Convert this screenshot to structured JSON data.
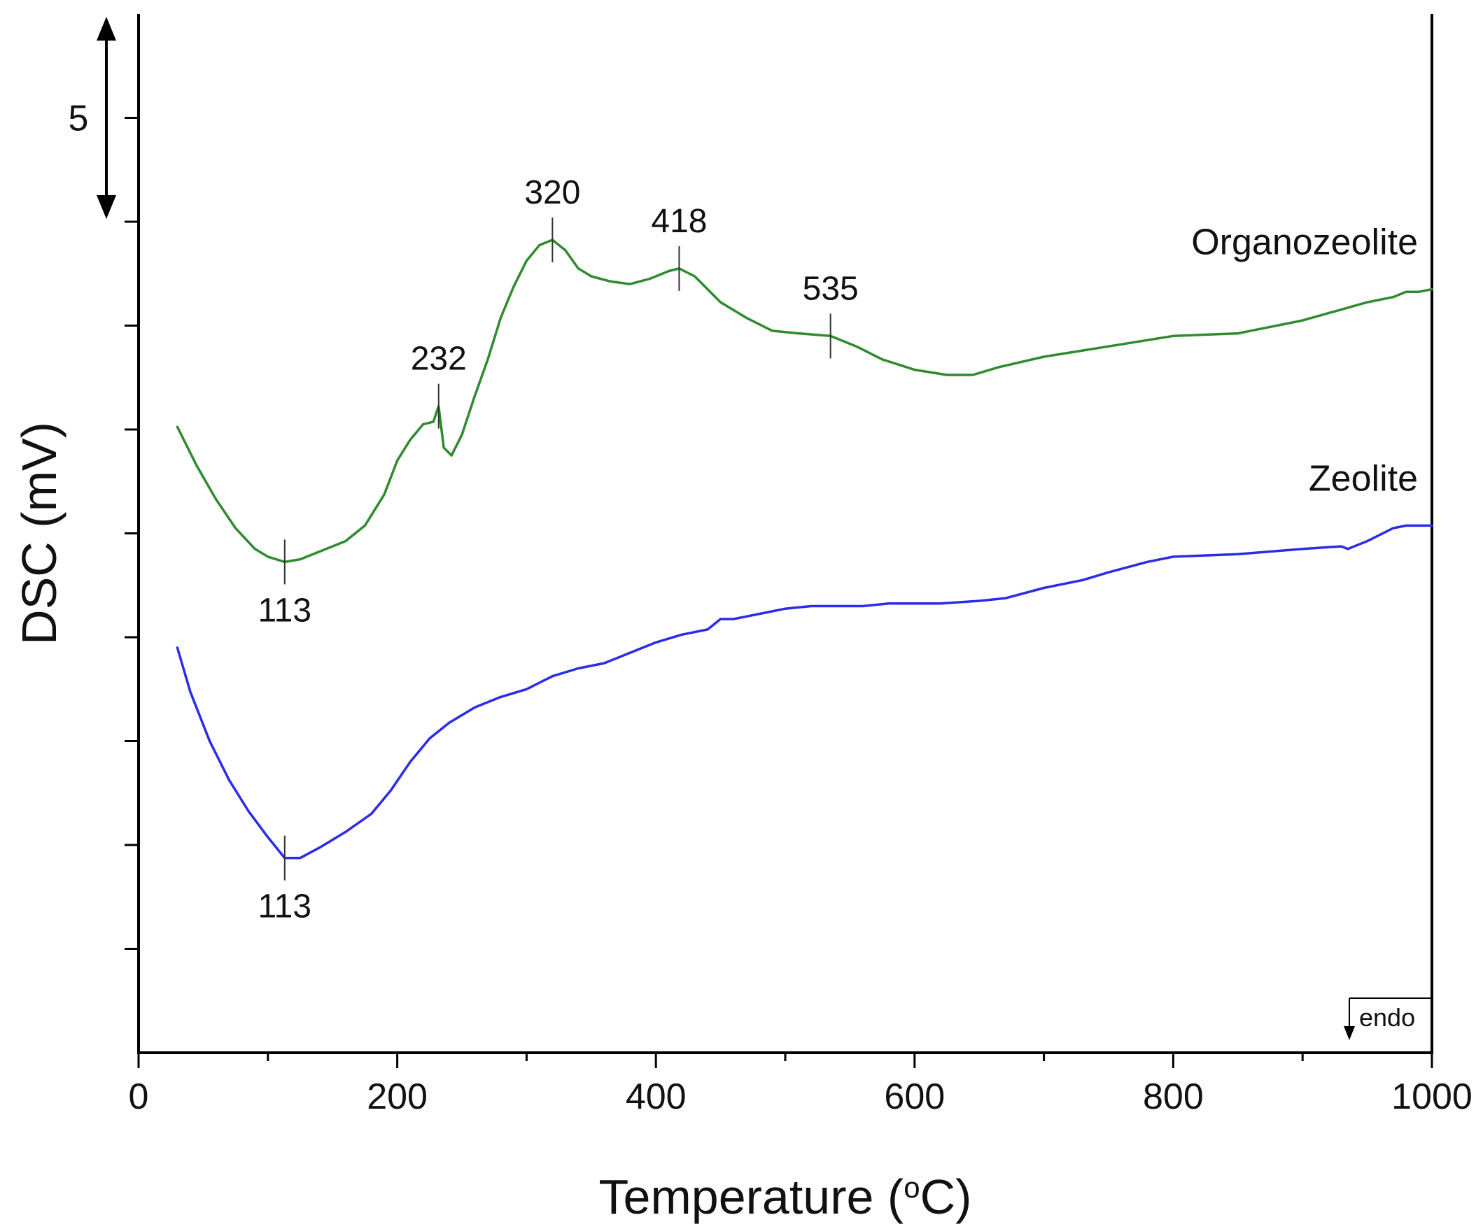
{
  "chart_data": {
    "type": "line",
    "title": "",
    "xlabel": "Temperature (",
    "xlabel_sup": "o",
    "xlabel_end": "C)",
    "ylabel": "DSC (mV)",
    "xlim": [
      0,
      1000
    ],
    "ylim": [
      -4,
      36
    ],
    "x_ticks": [
      0,
      200,
      400,
      600,
      800,
      1000
    ],
    "x_tick_labels": [
      "0",
      "200",
      "400",
      "600",
      "800",
      "1000"
    ],
    "x_minor_ticks": [
      100,
      300,
      500,
      700,
      900
    ],
    "y_ticks": [
      0,
      4,
      8,
      12,
      16,
      20,
      24,
      28,
      32
    ],
    "y_tick_labels_shown": false,
    "scale_bar": {
      "label": "5",
      "from": 28,
      "to": 36
    },
    "endo_label": "endo",
    "series": [
      {
        "name": "Organozeolite",
        "color": "#2e8b2e",
        "x": [
          30,
          45,
          60,
          75,
          90,
          100,
          113,
          125,
          140,
          160,
          175,
          190,
          200,
          210,
          220,
          228,
          232,
          236,
          242,
          250,
          260,
          270,
          280,
          290,
          300,
          310,
          320,
          330,
          340,
          350,
          365,
          380,
          395,
          410,
          418,
          430,
          450,
          470,
          490,
          510,
          535,
          555,
          575,
          600,
          625,
          645,
          665,
          700,
          750,
          800,
          850,
          900,
          950,
          970,
          980,
          990,
          1000
        ],
        "y": [
          20.1,
          18.6,
          17.3,
          16.2,
          15.4,
          15.1,
          14.9,
          15.0,
          15.3,
          15.7,
          16.3,
          17.5,
          18.8,
          19.6,
          20.2,
          20.3,
          20.9,
          19.3,
          19.0,
          19.8,
          21.3,
          22.7,
          24.3,
          25.5,
          26.5,
          27.1,
          27.3,
          26.9,
          26.2,
          25.9,
          25.7,
          25.6,
          25.8,
          26.1,
          26.2,
          25.9,
          24.9,
          24.3,
          23.8,
          23.7,
          23.6,
          23.2,
          22.7,
          22.3,
          22.1,
          22.1,
          22.4,
          22.8,
          23.2,
          23.6,
          23.7,
          24.2,
          24.9,
          25.1,
          25.3,
          25.3,
          25.4
        ]
      },
      {
        "name": "Zeolite",
        "color": "#2b2bea",
        "x": [
          30,
          40,
          55,
          70,
          85,
          100,
          113,
          125,
          140,
          160,
          180,
          195,
          210,
          225,
          240,
          260,
          280,
          300,
          320,
          340,
          360,
          380,
          400,
          420,
          440,
          450,
          460,
          470,
          480,
          500,
          520,
          540,
          560,
          580,
          600,
          620,
          650,
          670,
          700,
          730,
          750,
          780,
          800,
          850,
          900,
          930,
          935,
          950,
          970,
          980,
          990,
          1000
        ],
        "y": [
          11.6,
          9.9,
          8.0,
          6.5,
          5.3,
          4.3,
          3.5,
          3.5,
          3.9,
          4.5,
          5.2,
          6.1,
          7.2,
          8.1,
          8.7,
          9.3,
          9.7,
          10.0,
          10.5,
          10.8,
          11.0,
          11.4,
          11.8,
          12.1,
          12.3,
          12.7,
          12.7,
          12.8,
          12.9,
          13.1,
          13.2,
          13.2,
          13.2,
          13.3,
          13.3,
          13.3,
          13.4,
          13.5,
          13.9,
          14.2,
          14.5,
          14.9,
          15.1,
          15.2,
          15.4,
          15.5,
          15.4,
          15.7,
          16.2,
          16.3,
          16.3,
          16.3
        ]
      }
    ],
    "annotations": [
      {
        "series": "Organozeolite",
        "x": 113,
        "label": "113",
        "label_pos": "below"
      },
      {
        "series": "Organozeolite",
        "x": 232,
        "label": "232",
        "label_pos": "above"
      },
      {
        "series": "Organozeolite",
        "x": 320,
        "label": "320",
        "label_pos": "above"
      },
      {
        "series": "Organozeolite",
        "x": 418,
        "label": "418",
        "label_pos": "above"
      },
      {
        "series": "Organozeolite",
        "x": 535,
        "label": "535",
        "label_pos": "above"
      },
      {
        "series": "Zeolite",
        "x": 113,
        "label": "113",
        "label_pos": "below"
      }
    ]
  }
}
